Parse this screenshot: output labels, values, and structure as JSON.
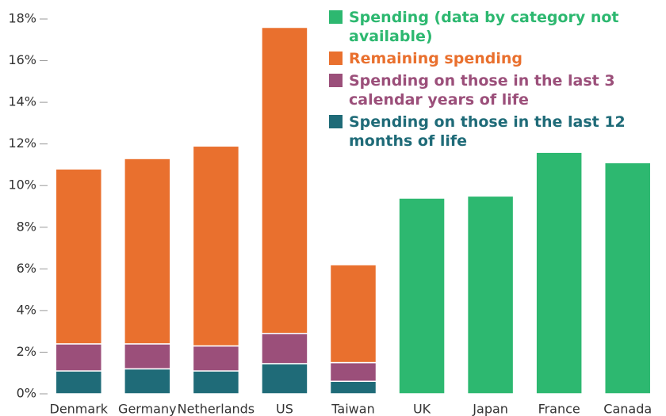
{
  "chart_data": {
    "type": "stacked_bar",
    "categories": [
      "Denmark",
      "Germany",
      "Netherlands",
      "US",
      "Taiwan",
      "UK",
      "Japan",
      "France",
      "Canada"
    ],
    "series": [
      {
        "name": "Spending (data by category not available)",
        "color": "#2db870",
        "values": [
          null,
          null,
          null,
          null,
          null,
          9.4,
          9.5,
          11.6,
          11.1
        ]
      },
      {
        "name": "Remaining spending",
        "color": "#e9702e",
        "values": [
          8.4,
          8.9,
          9.6,
          14.7,
          4.7,
          null,
          null,
          null,
          null
        ]
      },
      {
        "name": "Spending on those in the last 3 calendar years of life",
        "color": "#9b4f7a",
        "values": [
          1.3,
          1.2,
          1.2,
          1.45,
          0.9,
          null,
          null,
          null,
          null
        ]
      },
      {
        "name": "Spending on those in the last 12 months of life",
        "color": "#1f6b78",
        "values": [
          1.1,
          1.2,
          1.1,
          1.45,
          0.6,
          null,
          null,
          null,
          null
        ]
      }
    ],
    "ylim": [
      0,
      18
    ],
    "yticks": [
      {
        "value": 0,
        "label": "0%"
      },
      {
        "value": 2,
        "label": "2%"
      },
      {
        "value": 4,
        "label": "4%"
      },
      {
        "value": 6,
        "label": "6%"
      },
      {
        "value": 8,
        "label": "8%"
      },
      {
        "value": 10,
        "label": "10%"
      },
      {
        "value": 12,
        "label": "12%"
      },
      {
        "value": 14,
        "label": "14%"
      },
      {
        "value": 16,
        "label": "16%"
      },
      {
        "value": 18,
        "label": "18%"
      }
    ],
    "stack_order": [
      3,
      2,
      1,
      0
    ]
  }
}
